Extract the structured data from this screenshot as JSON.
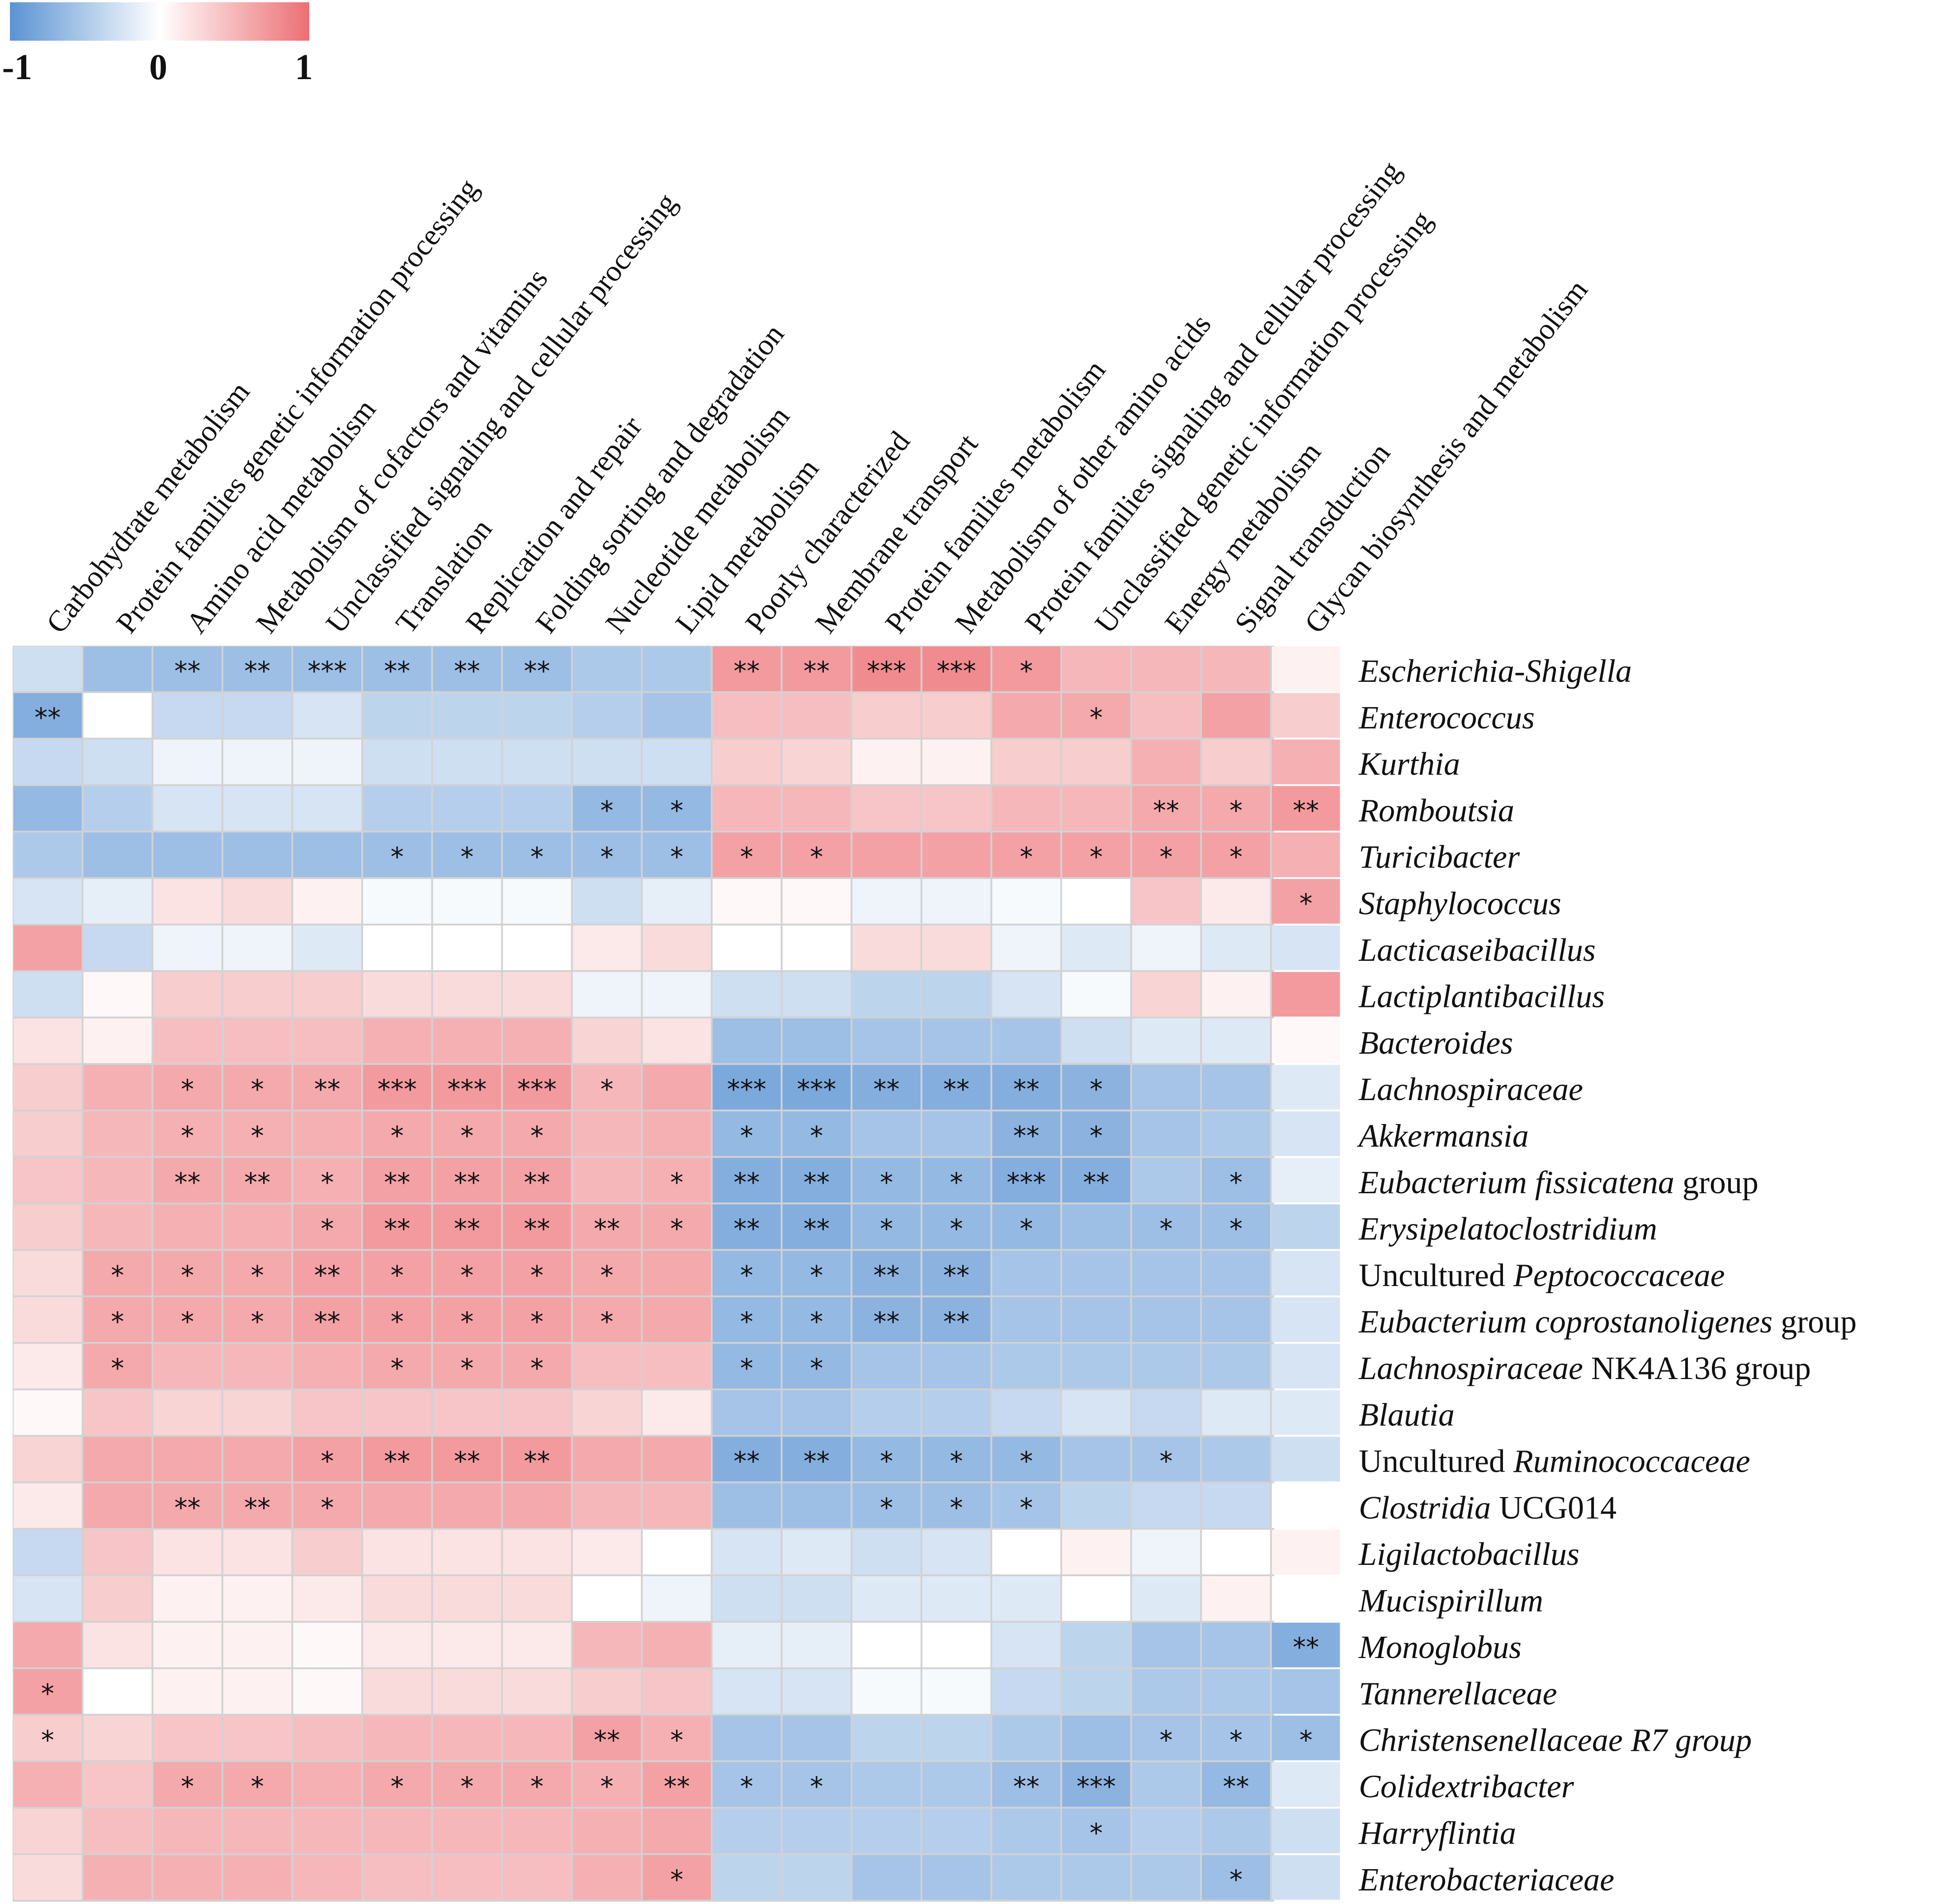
{
  "chart_data": {
    "type": "heatmap",
    "title": "",
    "colorbar": {
      "min": -1,
      "max": 1,
      "tick_labels": [
        "-1",
        "0",
        "1"
      ],
      "low_color": "#5B93D3",
      "mid_color": "#FFFFFF",
      "high_color": "#EC6F74"
    },
    "columns": [
      "Carbohydrate metabolism",
      "Protein families genetic information processing",
      "Amino acid metabolism",
      "Metabolism of cofactors and vitamins",
      "Unclassified signaling and cellular processing",
      "Translation",
      "Replication and repair",
      "Folding sorting and degradation",
      "Nucleotide metabolism",
      "Lipid metabolism",
      "Poorly characterized",
      "Membrane transport",
      "Protein families metabolism",
      "Metabolism of other amino acids",
      "Protein families signaling and cellular processing",
      "Unclassified genetic information processing",
      "Energy metabolism",
      "Signal transduction",
      "Glycan biosynthesis and metabolism"
    ],
    "rows": [
      {
        "label": [
          {
            "t": "Escherichia-Shigella",
            "i": true
          }
        ]
      },
      {
        "label": [
          {
            "t": "Enterococcus",
            "i": true
          }
        ]
      },
      {
        "label": [
          {
            "t": "Kurthia",
            "i": true
          }
        ]
      },
      {
        "label": [
          {
            "t": "Romboutsia",
            "i": true
          }
        ]
      },
      {
        "label": [
          {
            "t": "Turicibacter",
            "i": true
          }
        ]
      },
      {
        "label": [
          {
            "t": "Staphylococcus",
            "i": true
          }
        ]
      },
      {
        "label": [
          {
            "t": "Lacticaseibacillus",
            "i": true
          }
        ]
      },
      {
        "label": [
          {
            "t": "Lactiplantibacillus",
            "i": true
          }
        ]
      },
      {
        "label": [
          {
            "t": "Bacteroides",
            "i": true
          }
        ]
      },
      {
        "label": [
          {
            "t": "Lachnospiraceae",
            "i": true
          }
        ]
      },
      {
        "label": [
          {
            "t": "Akkermansia",
            "i": true
          }
        ]
      },
      {
        "label": [
          {
            "t": "Eubacterium fissicatena",
            "i": true
          },
          {
            "t": " group",
            "i": false
          }
        ]
      },
      {
        "label": [
          {
            "t": "Erysipelatoclostridium",
            "i": true
          }
        ]
      },
      {
        "label": [
          {
            "t": "Uncultured ",
            "i": false
          },
          {
            "t": "Peptococcaceae",
            "i": true
          }
        ]
      },
      {
        "label": [
          {
            "t": "Eubacterium coprostanoligenes",
            "i": true
          },
          {
            "t": " group",
            "i": false
          }
        ]
      },
      {
        "label": [
          {
            "t": "Lachnospiraceae",
            "i": true
          },
          {
            "t": " NK4A136 group",
            "i": false
          }
        ]
      },
      {
        "label": [
          {
            "t": "Blautia",
            "i": true
          }
        ]
      },
      {
        "label": [
          {
            "t": "Uncultured ",
            "i": false
          },
          {
            "t": "Ruminococcaceae",
            "i": true
          }
        ]
      },
      {
        "label": [
          {
            "t": "Clostridia",
            "i": true
          },
          {
            "t": " UCG014",
            "i": false
          }
        ]
      },
      {
        "label": [
          {
            "t": "Ligilactobacillus",
            "i": true
          }
        ]
      },
      {
        "label": [
          {
            "t": "Mucispirillum",
            "i": true
          }
        ]
      },
      {
        "label": [
          {
            "t": "Monoglobus",
            "i": true
          }
        ]
      },
      {
        "label": [
          {
            "t": "Tannerellaceae",
            "i": true
          }
        ]
      },
      {
        "label": [
          {
            "t": "Christensenellaceae R7 group",
            "i": true
          }
        ]
      },
      {
        "label": [
          {
            "t": "Colidextribacter",
            "i": true
          }
        ]
      },
      {
        "label": [
          {
            "t": "Harryflintia",
            "i": true
          }
        ]
      },
      {
        "label": [
          {
            "t": "Enterobacteriaceae",
            "i": true
          }
        ]
      }
    ],
    "values": [
      [
        -0.3,
        -0.6,
        -0.6,
        -0.6,
        -0.6,
        -0.6,
        -0.6,
        -0.6,
        -0.5,
        -0.5,
        0.7,
        0.7,
        0.8,
        0.8,
        0.7,
        0.5,
        0.5,
        0.5,
        0.1
      ],
      [
        -0.75,
        0.0,
        -0.35,
        -0.35,
        -0.25,
        -0.4,
        -0.4,
        -0.4,
        -0.45,
        -0.55,
        0.45,
        0.45,
        0.35,
        0.35,
        0.6,
        0.6,
        0.45,
        0.65,
        0.35
      ],
      [
        -0.35,
        -0.3,
        -0.1,
        -0.1,
        -0.1,
        -0.3,
        -0.3,
        -0.3,
        -0.3,
        -0.3,
        0.35,
        0.3,
        0.1,
        0.1,
        0.35,
        0.35,
        0.55,
        0.35,
        0.55
      ],
      [
        -0.65,
        -0.45,
        -0.25,
        -0.25,
        -0.25,
        -0.45,
        -0.45,
        -0.45,
        -0.65,
        -0.65,
        0.5,
        0.5,
        0.4,
        0.4,
        0.5,
        0.5,
        0.6,
        0.6,
        0.7
      ],
      [
        -0.5,
        -0.6,
        -0.6,
        -0.6,
        -0.6,
        -0.6,
        -0.6,
        -0.6,
        -0.6,
        -0.6,
        0.65,
        0.65,
        0.65,
        0.65,
        0.65,
        0.65,
        0.65,
        0.65,
        0.55
      ],
      [
        -0.25,
        -0.15,
        0.2,
        0.25,
        0.1,
        -0.05,
        -0.05,
        -0.05,
        -0.3,
        -0.15,
        0.05,
        0.05,
        -0.1,
        -0.1,
        -0.05,
        0.0,
        0.4,
        0.15,
        0.65
      ],
      [
        0.65,
        -0.35,
        -0.1,
        -0.1,
        -0.2,
        0.0,
        0.0,
        0.0,
        0.15,
        0.25,
        0.0,
        0.0,
        0.25,
        0.25,
        -0.1,
        -0.2,
        -0.1,
        -0.2,
        -0.25
      ],
      [
        -0.3,
        0.05,
        0.35,
        0.35,
        0.35,
        0.25,
        0.25,
        0.25,
        -0.1,
        -0.1,
        -0.3,
        -0.3,
        -0.4,
        -0.4,
        -0.25,
        -0.05,
        0.3,
        0.1,
        0.7
      ],
      [
        0.2,
        0.1,
        0.45,
        0.45,
        0.45,
        0.55,
        0.55,
        0.55,
        0.3,
        0.2,
        -0.6,
        -0.6,
        -0.55,
        -0.55,
        -0.55,
        -0.3,
        -0.2,
        -0.2,
        0.05
      ],
      [
        0.35,
        0.55,
        0.6,
        0.6,
        0.6,
        0.7,
        0.7,
        0.7,
        0.5,
        0.6,
        -0.8,
        -0.8,
        -0.75,
        -0.75,
        -0.75,
        -0.7,
        -0.55,
        -0.55,
        -0.2
      ],
      [
        0.35,
        0.5,
        0.55,
        0.55,
        0.55,
        0.6,
        0.6,
        0.6,
        0.5,
        0.55,
        -0.65,
        -0.65,
        -0.55,
        -0.55,
        -0.7,
        -0.7,
        -0.55,
        -0.5,
        -0.25
      ],
      [
        0.4,
        0.5,
        0.6,
        0.6,
        0.55,
        0.65,
        0.65,
        0.65,
        0.5,
        0.55,
        -0.75,
        -0.75,
        -0.65,
        -0.65,
        -0.75,
        -0.75,
        -0.5,
        -0.6,
        -0.15
      ],
      [
        0.35,
        0.5,
        0.55,
        0.55,
        0.6,
        0.7,
        0.7,
        0.7,
        0.6,
        0.6,
        -0.75,
        -0.75,
        -0.65,
        -0.65,
        -0.65,
        -0.6,
        -0.6,
        -0.6,
        -0.4
      ],
      [
        0.25,
        0.6,
        0.6,
        0.6,
        0.65,
        0.65,
        0.65,
        0.65,
        0.6,
        0.6,
        -0.65,
        -0.65,
        -0.7,
        -0.7,
        -0.55,
        -0.55,
        -0.55,
        -0.55,
        -0.25
      ],
      [
        0.25,
        0.6,
        0.6,
        0.6,
        0.65,
        0.65,
        0.65,
        0.65,
        0.6,
        0.6,
        -0.65,
        -0.65,
        -0.7,
        -0.7,
        -0.55,
        -0.55,
        -0.55,
        -0.55,
        -0.25
      ],
      [
        0.15,
        0.6,
        0.5,
        0.5,
        0.55,
        0.6,
        0.6,
        0.6,
        0.45,
        0.45,
        -0.65,
        -0.65,
        -0.55,
        -0.55,
        -0.5,
        -0.5,
        -0.5,
        -0.5,
        -0.25
      ],
      [
        0.05,
        0.4,
        0.3,
        0.3,
        0.4,
        0.4,
        0.4,
        0.4,
        0.3,
        0.15,
        -0.55,
        -0.55,
        -0.45,
        -0.45,
        -0.35,
        -0.25,
        -0.35,
        -0.2,
        -0.2
      ],
      [
        0.3,
        0.6,
        0.6,
        0.6,
        0.65,
        0.7,
        0.7,
        0.7,
        0.6,
        0.6,
        -0.75,
        -0.75,
        -0.65,
        -0.65,
        -0.65,
        -0.55,
        -0.55,
        -0.5,
        -0.3
      ],
      [
        0.15,
        0.6,
        0.6,
        0.6,
        0.6,
        0.6,
        0.6,
        0.6,
        0.5,
        0.5,
        -0.6,
        -0.6,
        -0.6,
        -0.6,
        -0.55,
        -0.4,
        -0.35,
        -0.35,
        0.0
      ],
      [
        -0.35,
        0.4,
        0.2,
        0.2,
        0.35,
        0.2,
        0.2,
        0.2,
        0.15,
        0.0,
        -0.25,
        -0.2,
        -0.3,
        -0.25,
        0.0,
        0.1,
        -0.1,
        0.0,
        0.1
      ],
      [
        -0.25,
        0.35,
        0.1,
        0.1,
        0.15,
        0.25,
        0.25,
        0.25,
        0.0,
        -0.1,
        -0.3,
        -0.3,
        -0.2,
        -0.2,
        -0.2,
        0.0,
        -0.2,
        0.1,
        0.0
      ],
      [
        0.6,
        0.2,
        0.1,
        0.1,
        0.05,
        0.15,
        0.15,
        0.15,
        0.5,
        0.55,
        -0.15,
        -0.15,
        0.0,
        0.0,
        -0.25,
        -0.4,
        -0.55,
        -0.55,
        -0.75
      ],
      [
        0.65,
        0.0,
        0.1,
        0.1,
        0.05,
        0.25,
        0.25,
        0.25,
        0.35,
        0.4,
        -0.25,
        -0.25,
        -0.05,
        -0.05,
        -0.35,
        -0.4,
        -0.5,
        -0.5,
        -0.55
      ],
      [
        0.35,
        0.3,
        0.4,
        0.4,
        0.45,
        0.5,
        0.5,
        0.5,
        0.65,
        0.55,
        -0.55,
        -0.55,
        -0.4,
        -0.4,
        -0.5,
        -0.6,
        -0.55,
        -0.55,
        -0.6
      ],
      [
        0.55,
        0.4,
        0.6,
        0.6,
        0.55,
        0.6,
        0.6,
        0.6,
        0.55,
        0.65,
        -0.55,
        -0.55,
        -0.5,
        -0.5,
        -0.6,
        -0.7,
        -0.5,
        -0.65,
        -0.2
      ],
      [
        0.3,
        0.45,
        0.5,
        0.5,
        0.5,
        0.5,
        0.5,
        0.5,
        0.55,
        0.6,
        -0.45,
        -0.45,
        -0.45,
        -0.45,
        -0.5,
        -0.55,
        -0.45,
        -0.5,
        -0.3
      ],
      [
        0.25,
        0.55,
        0.55,
        0.55,
        0.5,
        0.45,
        0.45,
        0.45,
        0.55,
        0.65,
        -0.4,
        -0.4,
        -0.55,
        -0.55,
        -0.5,
        -0.5,
        -0.5,
        -0.6,
        -0.3
      ]
    ],
    "significance": [
      [
        "",
        "",
        "**",
        "**",
        "***",
        "**",
        "**",
        "**",
        "",
        "",
        "**",
        "**",
        "***",
        "***",
        "*",
        "",
        "",
        "",
        ""
      ],
      [
        "**",
        "",
        "",
        "",
        "",
        "",
        "",
        "",
        "",
        "",
        "",
        "",
        "",
        "",
        "",
        "*",
        "",
        "",
        ""
      ],
      [
        "",
        "",
        "",
        "",
        "",
        "",
        "",
        "",
        "",
        "",
        "",
        "",
        "",
        "",
        "",
        "",
        "",
        "",
        ""
      ],
      [
        "",
        "",
        "",
        "",
        "",
        "",
        "",
        "",
        "*",
        "*",
        "",
        "",
        "",
        "",
        "",
        "",
        "**",
        "*",
        "**"
      ],
      [
        "",
        "",
        "",
        "",
        "",
        "*",
        "*",
        "*",
        "*",
        "*",
        "*",
        "*",
        "",
        "",
        "*",
        "*",
        "*",
        "*",
        ""
      ],
      [
        "",
        "",
        "",
        "",
        "",
        "",
        "",
        "",
        "",
        "",
        "",
        "",
        "",
        "",
        "",
        "",
        "",
        "",
        "*"
      ],
      [
        "",
        "",
        "",
        "",
        "",
        "",
        "",
        "",
        "",
        "",
        "",
        "",
        "",
        "",
        "",
        "",
        "",
        "",
        ""
      ],
      [
        "",
        "",
        "",
        "",
        "",
        "",
        "",
        "",
        "",
        "",
        "",
        "",
        "",
        "",
        "",
        "",
        "",
        "",
        ""
      ],
      [
        "",
        "",
        "",
        "",
        "",
        "",
        "",
        "",
        "",
        "",
        "",
        "",
        "",
        "",
        "",
        "",
        "",
        "",
        ""
      ],
      [
        "",
        "",
        "*",
        "*",
        "**",
        "***",
        "***",
        "***",
        "*",
        "",
        "***",
        "***",
        "**",
        "**",
        "**",
        "*",
        "",
        "",
        ""
      ],
      [
        "",
        "",
        "*",
        "*",
        "",
        "*",
        "*",
        "*",
        "",
        "",
        "*",
        "*",
        "",
        "",
        "**",
        "*",
        "",
        "",
        ""
      ],
      [
        "",
        "",
        "**",
        "**",
        "*",
        "**",
        "**",
        "**",
        "",
        "*",
        "**",
        "**",
        "*",
        "*",
        "***",
        "**",
        "",
        "*",
        ""
      ],
      [
        "",
        "",
        "",
        "",
        "*",
        "**",
        "**",
        "**",
        "**",
        "*",
        "**",
        "**",
        "*",
        "*",
        "*",
        "",
        "*",
        "*",
        ""
      ],
      [
        "",
        "*",
        "*",
        "*",
        "**",
        "*",
        "*",
        "*",
        "*",
        "",
        "*",
        "*",
        "**",
        "**",
        "",
        "",
        "",
        "",
        ""
      ],
      [
        "",
        "*",
        "*",
        "*",
        "**",
        "*",
        "*",
        "*",
        "*",
        "",
        "*",
        "*",
        "**",
        "**",
        "",
        "",
        "",
        "",
        ""
      ],
      [
        "",
        "*",
        "",
        "",
        "",
        "*",
        "*",
        "*",
        "",
        "",
        "*",
        "*",
        "",
        "",
        "",
        "",
        "",
        "",
        ""
      ],
      [
        "",
        "",
        "",
        "",
        "",
        "",
        "",
        "",
        "",
        "",
        "",
        "",
        "",
        "",
        "",
        "",
        "",
        "",
        ""
      ],
      [
        "",
        "",
        "",
        "",
        "*",
        "**",
        "**",
        "**",
        "",
        "",
        "**",
        "**",
        "*",
        "*",
        "*",
        "",
        "*",
        "",
        ""
      ],
      [
        "",
        "",
        "**",
        "**",
        "*",
        "",
        "",
        "",
        "",
        "",
        "",
        "",
        "*",
        "*",
        "*",
        "",
        "",
        "",
        ""
      ],
      [
        "",
        "",
        "",
        "",
        "",
        "",
        "",
        "",
        "",
        "",
        "",
        "",
        "",
        "",
        "",
        "",
        "",
        "",
        ""
      ],
      [
        "",
        "",
        "",
        "",
        "",
        "",
        "",
        "",
        "",
        "",
        "",
        "",
        "",
        "",
        "",
        "",
        "",
        "",
        ""
      ],
      [
        "",
        "",
        "",
        "",
        "",
        "",
        "",
        "",
        "",
        "",
        "",
        "",
        "",
        "",
        "",
        "",
        "",
        "",
        "**"
      ],
      [
        "*",
        "",
        "",
        "",
        "",
        "",
        "",
        "",
        "",
        "",
        "",
        "",
        "",
        "",
        "",
        "",
        "",
        "",
        ""
      ],
      [
        "*",
        "",
        "",
        "",
        "",
        "",
        "",
        "",
        "**",
        "*",
        "",
        "",
        "",
        "",
        "",
        "",
        "*",
        "*",
        "*"
      ],
      [
        "",
        "",
        "*",
        "*",
        "",
        "*",
        "*",
        "*",
        "*",
        "**",
        "*",
        "*",
        "",
        "",
        "**",
        "***",
        "",
        "**",
        ""
      ],
      [
        "",
        "",
        "",
        "",
        "",
        "",
        "",
        "",
        "",
        "",
        "",
        "",
        "",
        "",
        "",
        "*",
        "",
        "",
        ""
      ],
      [
        "",
        "",
        "",
        "",
        "",
        "",
        "",
        "",
        "",
        "*",
        "",
        "",
        "",
        "",
        "",
        "",
        "",
        "*",
        ""
      ]
    ]
  }
}
